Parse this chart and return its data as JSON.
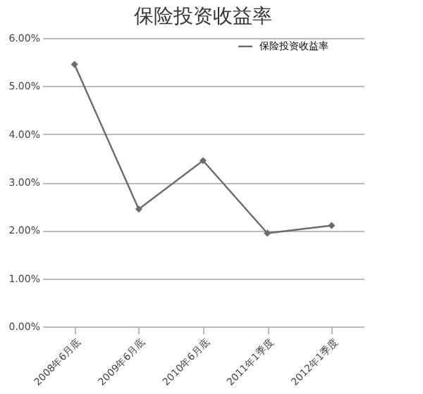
{
  "chart_data": {
    "type": "line",
    "title": "保险投资收益率",
    "categories": [
      "2008年6月底",
      "2009年6月底",
      "2010年6月底",
      "2011年1季度",
      "2012年1季度"
    ],
    "series": [
      {
        "name": "保险投资收益率",
        "color": "#6b6b6b",
        "values": [
          5.45,
          2.44,
          3.45,
          1.94,
          2.1
        ]
      }
    ],
    "ylim": [
      0,
      6
    ],
    "yticks": [
      {
        "value": 0,
        "label": "0.00%"
      },
      {
        "value": 1,
        "label": "1.00%"
      },
      {
        "value": 2,
        "label": "2.00%"
      },
      {
        "value": 3,
        "label": "3.00%"
      },
      {
        "value": 4,
        "label": "4.00%"
      },
      {
        "value": 5,
        "label": "5.00%"
      },
      {
        "value": 6,
        "label": "6.00%"
      }
    ],
    "grid": "y",
    "legend": "right",
    "marker": "diamond"
  }
}
